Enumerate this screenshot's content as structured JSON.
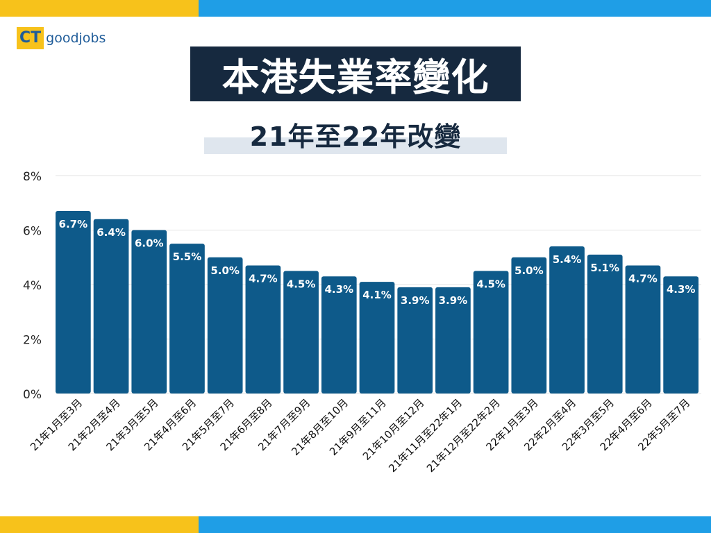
{
  "brand": {
    "logo_ct": "CT",
    "logo_text": "goodjobs",
    "colors": {
      "yellow": "#f7c21b",
      "blue": "#1f9ee6",
      "navy": "#16293f",
      "bar": "#0e5a8a"
    }
  },
  "header": {
    "title": "本港失業率變化",
    "subtitle": "21年至22年改變"
  },
  "chart_data": {
    "type": "bar",
    "categories": [
      "21年1月至3月",
      "21年2月至4月",
      "21年3月至5月",
      "21年4月至6月",
      "21年5月至7月",
      "21年6月至8月",
      "21年7月至9月",
      "21年8月至10月",
      "21年9月至11月",
      "21年10月至12月",
      "21年11月至22年1月",
      "21年12月至22年2月",
      "22年1月至3月",
      "22年2月至4月",
      "22年3月至5月",
      "22年4月至6月",
      "22年5月至7月"
    ],
    "values": [
      6.7,
      6.4,
      6.0,
      5.5,
      5.0,
      4.7,
      4.5,
      4.3,
      4.1,
      3.9,
      3.9,
      4.5,
      5.0,
      5.4,
      5.1,
      4.7,
      4.3
    ],
    "value_labels": [
      "6.7%",
      "6.4%",
      "6.0%",
      "5.5%",
      "5.0%",
      "4.7%",
      "4.5%",
      "4.3%",
      "4.1%",
      "3.9%",
      "3.9%",
      "4.5%",
      "5.0%",
      "5.4%",
      "5.1%",
      "4.7%",
      "4.3%"
    ],
    "yticks": [
      "0%",
      "2%",
      "4%",
      "6%",
      "8%"
    ],
    "ylim": [
      0,
      8
    ],
    "grid": true,
    "xlabel": "",
    "ylabel": ""
  }
}
